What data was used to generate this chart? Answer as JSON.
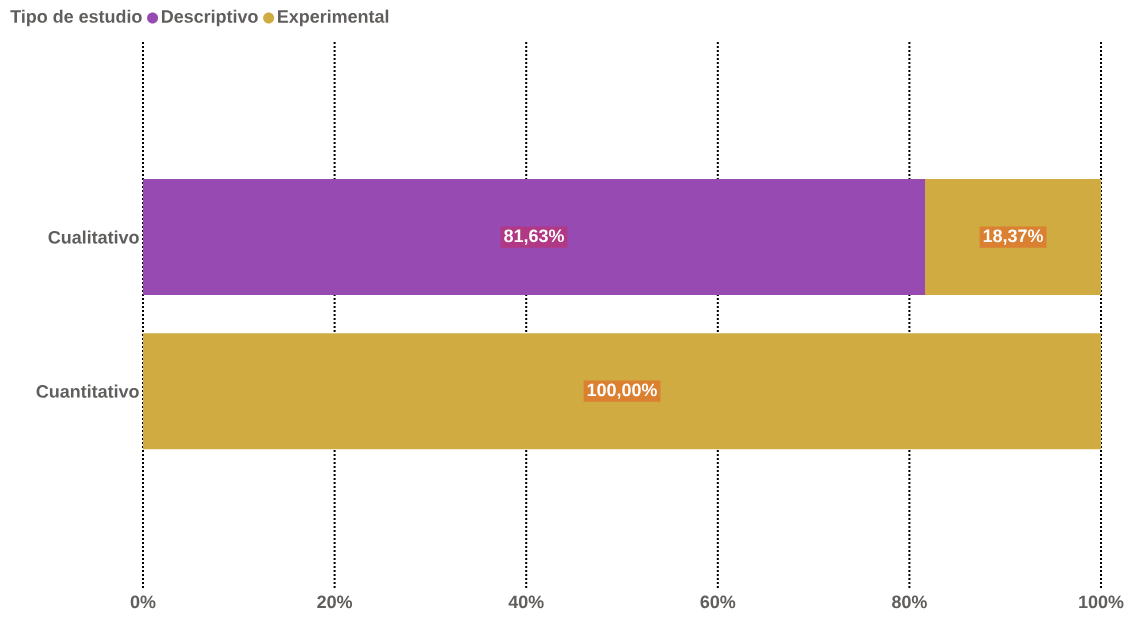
{
  "chart_data": {
    "type": "bar",
    "orientation": "horizontal",
    "stacked": true,
    "legend_title": "Tipo de estudio",
    "legend": "top left",
    "grid": "x",
    "categories": [
      "Cualitativo",
      "Cuantitativo"
    ],
    "series": [
      {
        "name": "Descriptivo",
        "color": "#974bb2",
        "values": [
          81.63,
          0
        ],
        "value_labels": [
          "81,63%",
          null
        ]
      },
      {
        "name": "Experimental",
        "color": "#cfab42",
        "values": [
          18.37,
          100
        ],
        "value_labels": [
          "18,37%",
          "100,00%"
        ]
      }
    ],
    "xlim": [
      0,
      100
    ],
    "xticks": [
      {
        "value": 0,
        "label": "0%"
      },
      {
        "value": 20,
        "label": "20%"
      },
      {
        "value": 40,
        "label": "40%"
      },
      {
        "value": 60,
        "label": "60%"
      },
      {
        "value": 80,
        "label": "80%"
      },
      {
        "value": 100,
        "label": "100%"
      }
    ]
  }
}
